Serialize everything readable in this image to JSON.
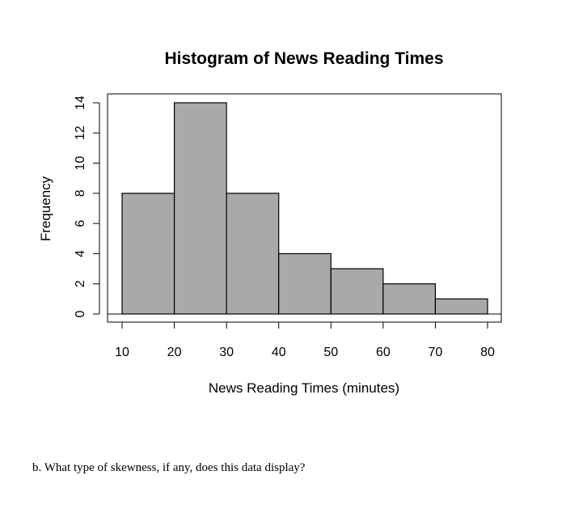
{
  "chart_data": {
    "type": "bar",
    "title": "Histogram of News Reading Times",
    "xlabel": "News Reading Times (minutes)",
    "ylabel": "Frequency",
    "bins": [
      {
        "from": 10,
        "to": 20,
        "count": 8
      },
      {
        "from": 20,
        "to": 30,
        "count": 14
      },
      {
        "from": 30,
        "to": 40,
        "count": 8
      },
      {
        "from": 40,
        "to": 50,
        "count": 4
      },
      {
        "from": 50,
        "to": 60,
        "count": 3
      },
      {
        "from": 60,
        "to": 70,
        "count": 2
      },
      {
        "from": 70,
        "to": 80,
        "count": 1
      }
    ],
    "xticks": [
      10,
      20,
      30,
      40,
      50,
      60,
      70,
      80
    ],
    "yticks": [
      0,
      2,
      4,
      6,
      8,
      10,
      12,
      14
    ],
    "xlim": [
      10,
      80
    ],
    "ylim": [
      0,
      14
    ],
    "grid": false,
    "bar_color": "#a9a9a9"
  },
  "question": {
    "text": "b. What type of skewness, if any, does this data display?"
  }
}
